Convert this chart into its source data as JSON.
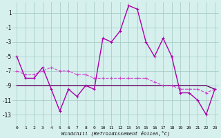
{
  "background_color": "#d6f0ee",
  "grid_color": "#a0c8c0",
  "line_color_main": "#aa00aa",
  "line_color_flat": "#660066",
  "line_color_dashed": "#cc44cc",
  "x_ticks": [
    0,
    1,
    2,
    3,
    4,
    5,
    6,
    7,
    8,
    9,
    10,
    11,
    12,
    13,
    14,
    15,
    16,
    17,
    18,
    19,
    20,
    21,
    22,
    23
  ],
  "y_ticks": [
    1,
    -1,
    -3,
    -5,
    -7,
    -9,
    -11,
    -13
  ],
  "xlabel": "Windchill (Refroidissement éolien,°C)",
  "xlim": [
    -0.5,
    23.5
  ],
  "ylim": [
    -14.5,
    2.5
  ],
  "series_flat": {
    "x": [
      0,
      1,
      2,
      3,
      4,
      5,
      6,
      7,
      8,
      9,
      10,
      11,
      12,
      13,
      14,
      15,
      16,
      17,
      18,
      19,
      20,
      21,
      22,
      23
    ],
    "y": [
      -9,
      -9,
      -9,
      -9,
      -9,
      -9,
      -9,
      -9,
      -9,
      -9,
      -9,
      -9,
      -9,
      -9,
      -9,
      -9,
      -9,
      -9,
      -9,
      -9,
      -9,
      -9,
      -9,
      -9.5
    ]
  },
  "series_dashed": {
    "x": [
      0,
      1,
      2,
      3,
      4,
      5,
      6,
      7,
      8,
      9,
      10,
      11,
      12,
      13,
      14,
      15,
      16,
      17,
      18,
      19,
      20,
      21,
      22,
      23
    ],
    "y": [
      -7,
      -7.5,
      -7.5,
      -7,
      -6.5,
      -7,
      -7,
      -7.5,
      -7.5,
      -8,
      -8,
      -8,
      -8,
      -8,
      -8,
      -8,
      -8.5,
      -9,
      -9,
      -9.5,
      -9.5,
      -9.5,
      -10,
      -9.5
    ]
  },
  "series_main": {
    "x": [
      0,
      1,
      2,
      3,
      4,
      5,
      6,
      7,
      8,
      9,
      10,
      11,
      12,
      13,
      14,
      15,
      16,
      17,
      18,
      19,
      20,
      21,
      22,
      23
    ],
    "y": [
      -5,
      -8,
      -8,
      -6.5,
      -9.5,
      -12.5,
      -9.5,
      -10.5,
      -9,
      -9.5,
      -2.5,
      -3,
      -1.5,
      2,
      1.5,
      -3,
      -5,
      -2.5,
      -5,
      -10,
      -10,
      -11,
      -13,
      -9.5
    ]
  }
}
